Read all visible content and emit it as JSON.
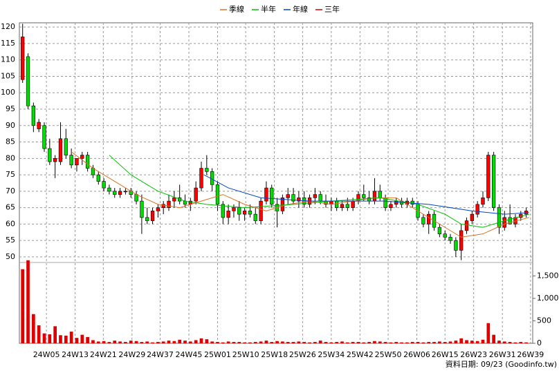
{
  "chart_data": {
    "type": "candlestick",
    "open": [
      104,
      111,
      96,
      89,
      90,
      83,
      79,
      79,
      86,
      81,
      78,
      80,
      81,
      77,
      75,
      73,
      71,
      70,
      69,
      70,
      70,
      69,
      67,
      62,
      61,
      64,
      65,
      65,
      67,
      68,
      67,
      66,
      67,
      71,
      77,
      76,
      72,
      66,
      62,
      64,
      65,
      63,
      64,
      63,
      61,
      67,
      71,
      66,
      64,
      68,
      69,
      67,
      68,
      66,
      68,
      69,
      67,
      66,
      67,
      65,
      66,
      65,
      67,
      69,
      68,
      67,
      70,
      68,
      65,
      66,
      67,
      66,
      67,
      66,
      62,
      60,
      63,
      59,
      57,
      56,
      55,
      52,
      58,
      61,
      63,
      66,
      68,
      81,
      65,
      59,
      62,
      60,
      62,
      63
    ],
    "high": [
      121,
      112,
      97,
      92,
      91,
      86,
      81,
      91,
      89,
      83,
      80,
      82,
      82,
      78,
      76,
      74,
      72,
      71,
      71,
      71,
      71,
      70,
      69,
      65,
      65,
      66,
      67,
      69,
      70,
      72,
      69,
      68,
      73,
      79,
      81,
      77,
      73,
      67,
      66,
      66,
      67,
      65,
      66,
      65,
      68,
      73,
      72,
      68,
      69,
      71,
      71,
      70,
      70,
      69,
      71,
      70,
      69,
      68,
      68,
      67,
      68,
      68,
      70,
      72,
      70,
      74,
      72,
      69,
      67,
      68,
      68,
      68,
      68,
      67,
      63,
      64,
      64,
      60,
      58,
      57,
      56,
      60,
      62,
      64,
      67,
      70,
      82,
      82,
      66,
      64,
      66,
      63,
      64,
      65
    ],
    "low": [
      103,
      95,
      88,
      88,
      82,
      78,
      74,
      78,
      80,
      77,
      76,
      78,
      76,
      74,
      72,
      70,
      69,
      68,
      68,
      69,
      68,
      66,
      57,
      60,
      60,
      62,
      63,
      64,
      65,
      66,
      65,
      64,
      66,
      70,
      75,
      70,
      64,
      60,
      60,
      62,
      61,
      61,
      62,
      60,
      60,
      66,
      65,
      59,
      63,
      66,
      66,
      65,
      65,
      65,
      66,
      66,
      65,
      64,
      64,
      64,
      64,
      64,
      66,
      67,
      66,
      66,
      67,
      64,
      64,
      65,
      65,
      65,
      65,
      61,
      59,
      57,
      58,
      56,
      55,
      54,
      50,
      49,
      57,
      60,
      62,
      65,
      67,
      64,
      57,
      58,
      60,
      59,
      61,
      62
    ],
    "close": [
      117,
      96,
      90,
      91,
      83,
      79,
      80,
      86,
      81,
      78,
      80,
      81,
      77,
      75,
      73,
      71,
      70,
      69,
      70,
      70,
      69,
      67,
      62,
      61,
      64,
      65,
      66,
      67,
      68,
      67,
      66,
      67,
      71,
      77,
      76,
      72,
      66,
      62,
      64,
      65,
      63,
      64,
      63,
      61,
      67,
      71,
      66,
      64,
      68,
      69,
      67,
      68,
      66,
      68,
      69,
      67,
      66,
      67,
      65,
      66,
      65,
      67,
      69,
      68,
      67,
      70,
      68,
      65,
      66,
      67,
      66,
      67,
      66,
      62,
      60,
      63,
      59,
      57,
      56,
      55,
      52,
      58,
      61,
      63,
      66,
      68,
      81,
      65,
      59,
      62,
      60,
      62,
      63,
      64
    ],
    "volume": [
      1650,
      1850,
      650,
      400,
      220,
      200,
      380,
      180,
      170,
      260,
      120,
      190,
      140,
      70,
      40,
      50,
      30,
      60,
      40,
      30,
      60,
      50,
      30,
      40,
      20,
      30,
      40,
      60,
      50,
      80,
      60,
      40,
      70,
      110,
      90,
      40,
      30,
      20,
      40,
      30,
      30,
      20,
      20,
      30,
      40,
      60,
      30,
      50,
      40,
      30,
      30,
      40,
      30,
      20,
      30,
      60,
      30,
      20,
      30,
      40,
      20,
      30,
      30,
      20,
      30,
      50,
      40,
      30,
      20,
      30,
      20,
      20,
      30,
      30,
      20,
      30,
      30,
      40,
      30,
      40,
      60,
      110,
      70,
      60,
      50,
      80,
      450,
      190,
      60,
      40,
      30,
      20,
      30,
      20
    ],
    "up_color": "#ff0000",
    "down_color": "#00dd00",
    "volume_color": "#e00000",
    "xlim": [
      -0.6,
      94.2
    ],
    "xticks": [
      {
        "value": 4.4,
        "label": "24W05"
      },
      {
        "value": 9.7,
        "label": "24W13"
      },
      {
        "value": 14.9,
        "label": "24W21"
      },
      {
        "value": 20.2,
        "label": "24W29"
      },
      {
        "value": 25.4,
        "label": "24W37"
      },
      {
        "value": 30.7,
        "label": "24W45"
      },
      {
        "value": 36.0,
        "label": "25W01"
      },
      {
        "value": 41.2,
        "label": "25W10"
      },
      {
        "value": 46.5,
        "label": "25W18"
      },
      {
        "value": 51.7,
        "label": "25W26"
      },
      {
        "value": 57.0,
        "label": "25W34"
      },
      {
        "value": 62.3,
        "label": "25W42"
      },
      {
        "value": 67.5,
        "label": "25W50"
      },
      {
        "value": 72.8,
        "label": "26W06"
      },
      {
        "value": 78.0,
        "label": "26W15"
      },
      {
        "value": 83.3,
        "label": "26W23"
      },
      {
        "value": 88.6,
        "label": "26W31"
      },
      {
        "value": 93.8,
        "label": "26W39"
      }
    ],
    "ylim": [
      48.3,
      121.3
    ],
    "yticks": [
      50,
      55,
      60,
      65,
      70,
      75,
      80,
      85,
      90,
      95,
      100,
      105,
      110,
      115,
      120
    ],
    "y2lim": [
      0,
      1800
    ],
    "y2ticks": [
      {
        "value": 1500,
        "label": "1,500"
      },
      {
        "value": 1000,
        "label": "1,000"
      },
      500,
      0
    ],
    "grid": true,
    "series": [
      {
        "name": "季線",
        "color": "#e07020",
        "x": [
          9,
          13,
          17,
          21,
          25,
          29,
          33,
          37,
          41,
          45,
          49,
          53,
          57,
          61,
          65,
          69,
          73,
          77,
          81,
          85,
          89,
          93.5
        ],
        "values": [
          82,
          77,
          73,
          69,
          66,
          65,
          67,
          69,
          66,
          64,
          66,
          67,
          66,
          67,
          68,
          68,
          64,
          60,
          56,
          57,
          60,
          62
        ]
      },
      {
        "name": "半年",
        "color": "#00c000",
        "x": [
          16,
          20,
          25,
          30,
          34,
          41,
          50,
          57,
          66,
          73,
          78,
          81,
          85,
          89,
          93.5
        ],
        "values": [
          81,
          75,
          70,
          67,
          66,
          65,
          66,
          67,
          68,
          66,
          63,
          60,
          59,
          61,
          63
        ]
      },
      {
        "name": "年線",
        "color": "#0044cc",
        "x": [
          33.5,
          38,
          44,
          53,
          60,
          67,
          75,
          83,
          89,
          93.5
        ],
        "values": [
          75,
          71,
          68,
          67,
          67,
          67,
          66,
          64,
          63,
          63.5
        ]
      },
      {
        "name": "三年",
        "color": "#cc0000",
        "x": [],
        "values": []
      }
    ],
    "footer": "資料日期: 09/23 (Goodinfo.tw)"
  }
}
